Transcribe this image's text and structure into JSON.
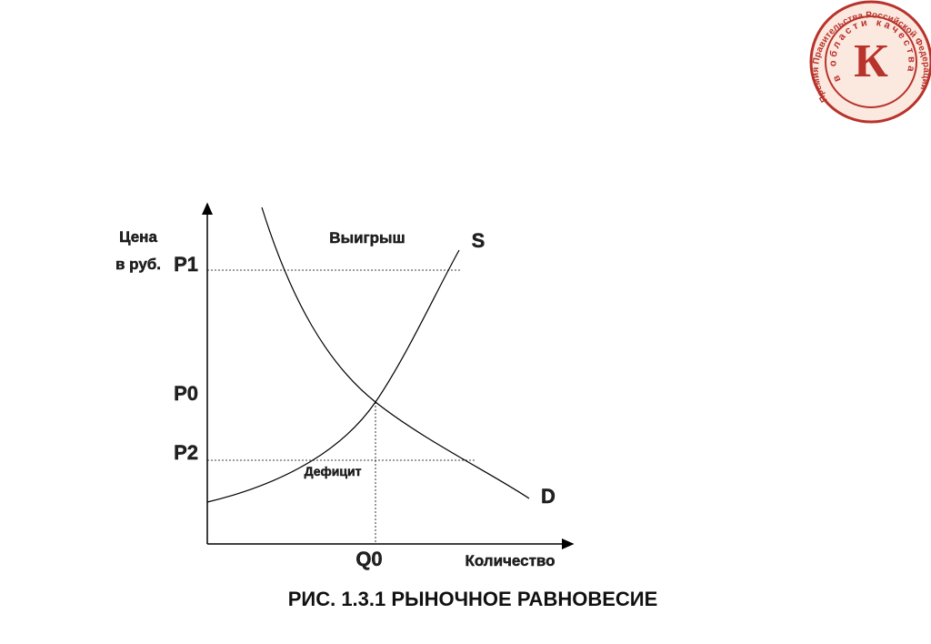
{
  "logo": {
    "outer_text": "Премия Правительства Российской Федерации",
    "inner_text": "в области качества",
    "letter": "К"
  },
  "diagram": {
    "y_axis_label": [
      "Цена",
      "в руб."
    ],
    "price_labels": [
      "P1",
      "P0",
      "P2"
    ],
    "gain_label": "Выигрыш",
    "supply_label": "S",
    "demand_label": "D",
    "deficit_label": "Дефицит",
    "quantity_label": "Q0",
    "x_axis_label": "Количество"
  },
  "caption": "РИС. 1.3.1 РЫНОЧНОЕ РАВНОВЕСИЕ"
}
